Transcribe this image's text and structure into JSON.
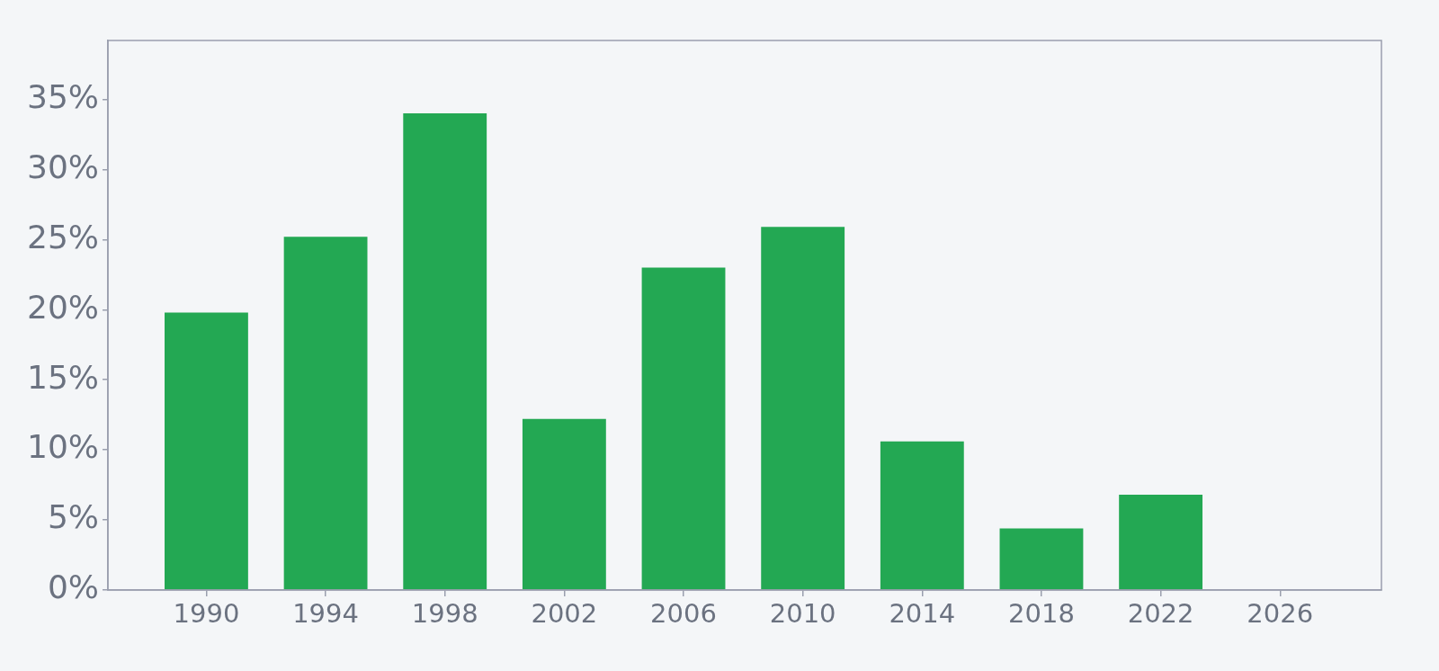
{
  "chart_data": {
    "type": "bar",
    "x": [
      1990,
      1994,
      1998,
      2002,
      2006,
      2010,
      2014,
      2018,
      2022
    ],
    "values": [
      19.8,
      25.2,
      34.0,
      12.2,
      23.0,
      25.9,
      10.6,
      4.4,
      6.8
    ],
    "color": "#23a853",
    "xlim": [
      1986.7,
      2029.4
    ],
    "xticks": [
      1990,
      1994,
      1998,
      2002,
      2006,
      2010,
      2014,
      2018,
      2022,
      2026
    ],
    "ylim": [
      0,
      39.2
    ],
    "yticks": [
      {
        "value": 0,
        "label": "0%"
      },
      {
        "value": 5,
        "label": "5%"
      },
      {
        "value": 10,
        "label": "10%"
      },
      {
        "value": 15,
        "label": "15%"
      },
      {
        "value": 20,
        "label": "20%"
      },
      {
        "value": 25,
        "label": "25%"
      },
      {
        "value": 30,
        "label": "30%"
      },
      {
        "value": 35,
        "label": "35%"
      }
    ]
  }
}
